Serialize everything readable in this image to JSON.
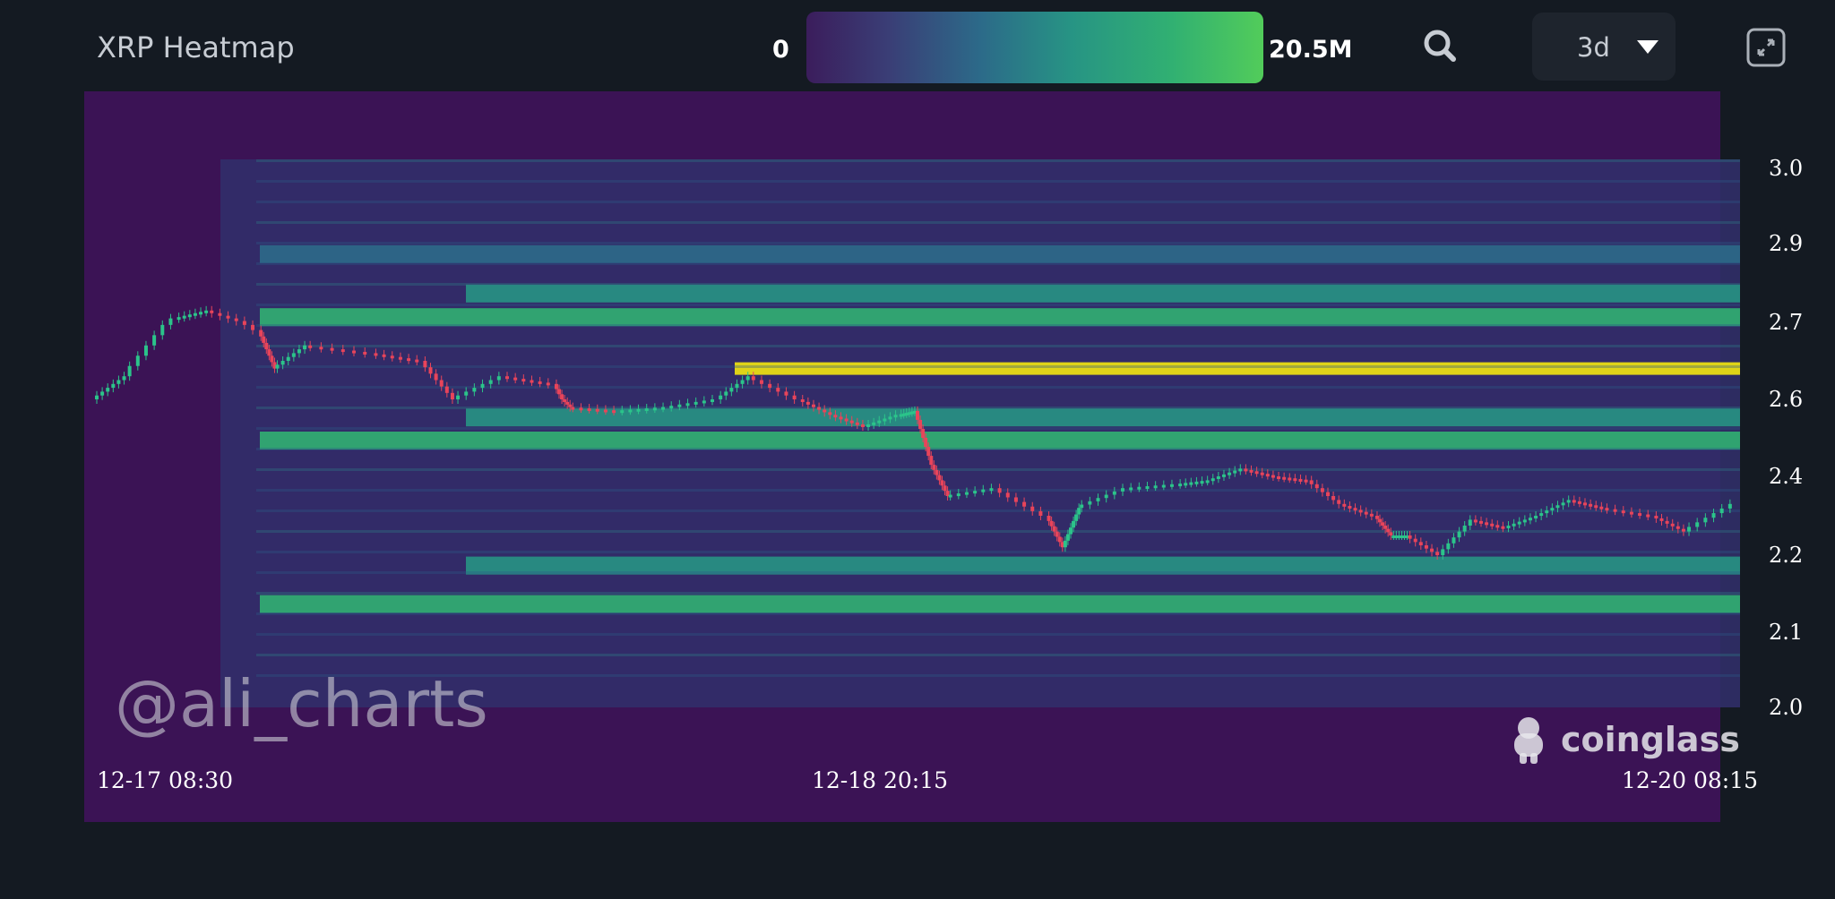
{
  "header": {
    "title": "XRP Heatmap",
    "scale_min": "0",
    "scale_max": "20.5M",
    "range": "3d",
    "colors": {
      "low": "#3b1d5c",
      "mid": "#279484",
      "high": "#52cc5a",
      "peak": "#f2e60f"
    },
    "icons": [
      "search-icon",
      "chevron-down-icon",
      "expand-icon"
    ]
  },
  "watermark": "@ali_charts",
  "brand": "coinglass",
  "chart_data": {
    "type": "heatmap",
    "title": "XRP Heatmap",
    "y_ticks": [
      "3.0",
      "2.9",
      "2.7",
      "2.6",
      "2.4",
      "2.2",
      "2.1",
      "2.0"
    ],
    "x_ticks": [
      "12-17 08:30",
      "12-18 20:15",
      "12-20 08:15"
    ],
    "ylim": [
      2.0,
      3.0
    ],
    "colorbar": {
      "min": "0",
      "max": "20.5M"
    },
    "liquidation_bands": [
      {
        "price": 2.64,
        "intensity": 1.0
      },
      {
        "price": 2.72,
        "intensity": 0.6
      },
      {
        "price": 2.78,
        "intensity": 0.55
      },
      {
        "price": 2.5,
        "intensity": 0.7
      },
      {
        "price": 2.56,
        "intensity": 0.45
      },
      {
        "price": 2.14,
        "intensity": 0.65
      },
      {
        "price": 2.19,
        "intensity": 0.5
      },
      {
        "price": 2.88,
        "intensity": 0.35
      }
    ],
    "price_path": [
      [
        0,
        2.6
      ],
      [
        0.02,
        2.63
      ],
      [
        0.05,
        2.71
      ],
      [
        0.07,
        2.73
      ],
      [
        0.1,
        2.69
      ],
      [
        0.11,
        2.64
      ],
      [
        0.13,
        2.67
      ],
      [
        0.17,
        2.66
      ],
      [
        0.2,
        2.65
      ],
      [
        0.22,
        2.6
      ],
      [
        0.25,
        2.63
      ],
      [
        0.28,
        2.62
      ],
      [
        0.29,
        2.58
      ],
      [
        0.32,
        2.57
      ],
      [
        0.35,
        2.58
      ],
      [
        0.38,
        2.6
      ],
      [
        0.4,
        2.63
      ],
      [
        0.43,
        2.6
      ],
      [
        0.45,
        2.56
      ],
      [
        0.47,
        2.53
      ],
      [
        0.49,
        2.56
      ],
      [
        0.5,
        2.57
      ],
      [
        0.51,
        2.43
      ],
      [
        0.52,
        2.35
      ],
      [
        0.55,
        2.37
      ],
      [
        0.58,
        2.3
      ],
      [
        0.59,
        2.22
      ],
      [
        0.6,
        2.32
      ],
      [
        0.63,
        2.37
      ],
      [
        0.66,
        2.38
      ],
      [
        0.68,
        2.39
      ],
      [
        0.7,
        2.42
      ],
      [
        0.72,
        2.4
      ],
      [
        0.74,
        2.39
      ],
      [
        0.76,
        2.33
      ],
      [
        0.78,
        2.3
      ],
      [
        0.79,
        2.25
      ],
      [
        0.8,
        2.25
      ],
      [
        0.82,
        2.2
      ],
      [
        0.84,
        2.29
      ],
      [
        0.86,
        2.27
      ],
      [
        0.88,
        2.3
      ],
      [
        0.9,
        2.34
      ],
      [
        0.92,
        2.32
      ],
      [
        0.95,
        2.3
      ],
      [
        0.97,
        2.26
      ],
      [
        1.0,
        2.33
      ]
    ]
  }
}
